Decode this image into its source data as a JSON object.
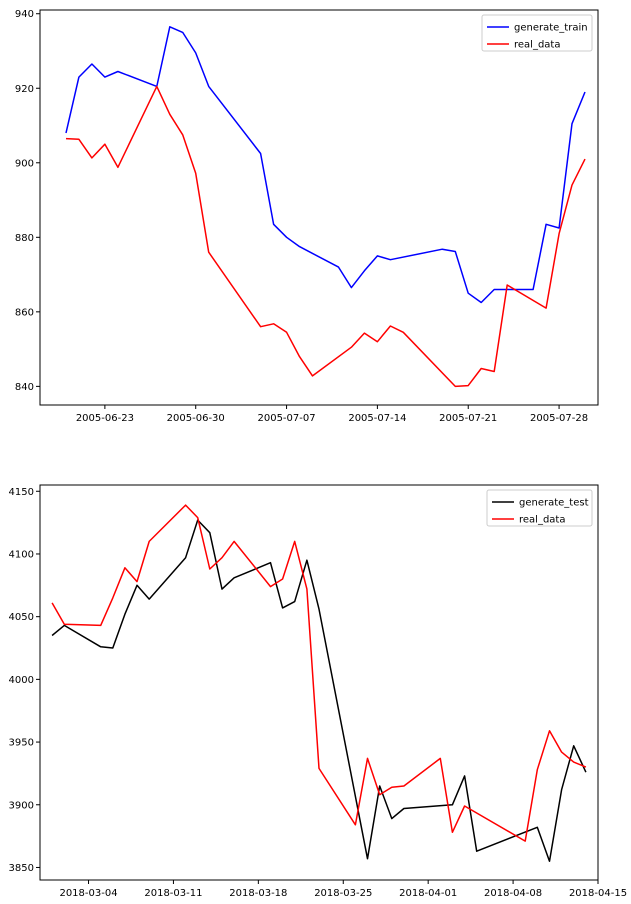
{
  "chart_data": [
    {
      "type": "line",
      "title": "",
      "xlabel": "",
      "ylabel": "",
      "grid": false,
      "legend_position": "top-right",
      "x_ticks": [
        "2005-06-23",
        "2005-06-30",
        "2005-07-07",
        "2005-07-14",
        "2005-07-21",
        "2005-07-28"
      ],
      "y_ticks": [
        840,
        860,
        880,
        900,
        920,
        940
      ],
      "xlim": [
        "2005-06-18",
        "2005-07-31"
      ],
      "ylim": [
        835,
        941
      ],
      "series": [
        {
          "name": "generate_train",
          "color": "#0000ff",
          "x": [
            "2005-06-20",
            "2005-06-21",
            "2005-06-22",
            "2005-06-23",
            "2005-06-24",
            "2005-06-27",
            "2005-06-28",
            "2005-06-29",
            "2005-06-30",
            "2005-07-01",
            "2005-07-05",
            "2005-07-06",
            "2005-07-07",
            "2005-07-08",
            "2005-07-11",
            "2005-07-12",
            "2005-07-13",
            "2005-07-14",
            "2005-07-15",
            "2005-07-19",
            "2005-07-20",
            "2005-07-21",
            "2005-07-22",
            "2005-07-23",
            "2005-07-26",
            "2005-07-27",
            "2005-07-28",
            "2005-07-29",
            "2005-07-30"
          ],
          "values": [
            908,
            923,
            926.5,
            923,
            924.5,
            920.5,
            936.5,
            935,
            929.5,
            920.5,
            902.5,
            883.5,
            880,
            877.5,
            872,
            866.5,
            871,
            875,
            874,
            876.8,
            876.2,
            865,
            862.5,
            866,
            866,
            883.5,
            882.5,
            910.5,
            919
          ]
        },
        {
          "name": "real_data",
          "color": "#ff0000",
          "x": [
            "2005-06-20",
            "2005-06-21",
            "2005-06-22",
            "2005-06-23",
            "2005-06-24",
            "2005-06-27",
            "2005-06-28",
            "2005-06-29",
            "2005-06-30",
            "2005-07-01",
            "2005-07-05",
            "2005-07-06",
            "2005-07-07",
            "2005-07-08",
            "2005-07-09",
            "2005-07-12",
            "2005-07-13",
            "2005-07-14",
            "2005-07-15",
            "2005-07-16",
            "2005-07-20",
            "2005-07-21",
            "2005-07-22",
            "2005-07-23",
            "2005-07-24",
            "2005-07-27",
            "2005-07-28",
            "2005-07-29",
            "2005-07-30"
          ],
          "values": [
            906.5,
            906.3,
            901.3,
            905,
            898.8,
            920.5,
            913,
            907.5,
            897.2,
            876,
            856,
            856.8,
            854.5,
            848,
            842.8,
            850.5,
            854.3,
            852,
            856.2,
            854.5,
            840,
            840.2,
            844.8,
            844,
            867.2,
            861,
            881,
            894,
            901
          ]
        }
      ]
    },
    {
      "type": "line",
      "title": "",
      "xlabel": "",
      "ylabel": "",
      "grid": false,
      "legend_position": "top-right",
      "x_ticks": [
        "2018-03-04",
        "2018-03-11",
        "2018-03-18",
        "2018-03-25",
        "2018-04-01",
        "2018-04-08",
        "2018-04-15"
      ],
      "y_ticks": [
        3850,
        3900,
        3950,
        4000,
        4050,
        4100,
        4150
      ],
      "xlim": [
        "2018-02-28",
        "2018-04-15"
      ],
      "ylim": [
        3840,
        4155
      ],
      "series": [
        {
          "name": "generate_test",
          "color": "#000000",
          "x": [
            "2018-03-01",
            "2018-03-02",
            "2018-03-05",
            "2018-03-06",
            "2018-03-07",
            "2018-03-08",
            "2018-03-09",
            "2018-03-12",
            "2018-03-13",
            "2018-03-14",
            "2018-03-15",
            "2018-03-16",
            "2018-03-19",
            "2018-03-20",
            "2018-03-21",
            "2018-03-22",
            "2018-03-23",
            "2018-03-27",
            "2018-03-28",
            "2018-03-29",
            "2018-03-30",
            "2018-04-03",
            "2018-04-04",
            "2018-04-05",
            "2018-04-10",
            "2018-04-11",
            "2018-04-12",
            "2018-04-13",
            "2018-04-14"
          ],
          "values": [
            4035,
            4043,
            4026,
            4025,
            4052,
            4075,
            4064,
            4097,
            4127,
            4117,
            4072,
            4081,
            4093,
            4057,
            4062,
            4095,
            4056,
            3857,
            3915,
            3889,
            3897,
            3900,
            3923,
            3863,
            3882,
            3855,
            3912,
            3947,
            3926
          ]
        },
        {
          "name": "real_data",
          "color": "#ff0000",
          "x": [
            "2018-03-01",
            "2018-03-02",
            "2018-03-05",
            "2018-03-06",
            "2018-03-07",
            "2018-03-08",
            "2018-03-09",
            "2018-03-12",
            "2018-03-13",
            "2018-03-14",
            "2018-03-15",
            "2018-03-16",
            "2018-03-19",
            "2018-03-20",
            "2018-03-21",
            "2018-03-22",
            "2018-03-23",
            "2018-03-26",
            "2018-03-27",
            "2018-03-28",
            "2018-03-29",
            "2018-03-30",
            "2018-04-02",
            "2018-04-03",
            "2018-04-04",
            "2018-04-09",
            "2018-04-10",
            "2018-04-11",
            "2018-04-12",
            "2018-04-13",
            "2018-04-14"
          ],
          "values": [
            4061,
            4044,
            4043,
            4065,
            4089,
            4078,
            4110,
            4139,
            4129,
            4088,
            4097,
            4110,
            4074,
            4080,
            4110,
            4072,
            3929,
            3884,
            3937,
            3908,
            3914,
            3915,
            3937,
            3878,
            3899,
            3871,
            3928,
            3959,
            3942,
            3934,
            3930
          ]
        }
      ]
    }
  ]
}
